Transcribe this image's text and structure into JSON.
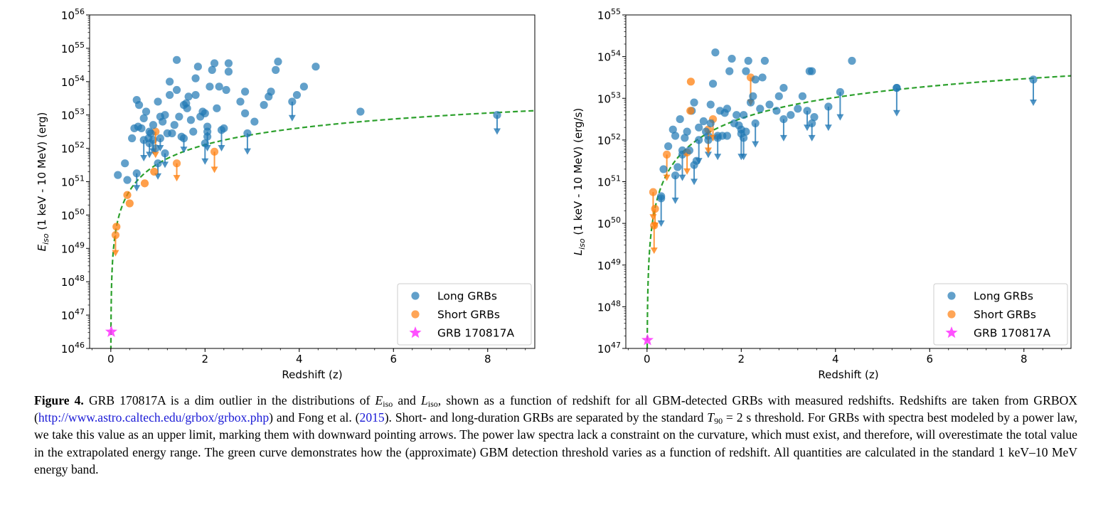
{
  "chart_data": [
    {
      "type": "scatter",
      "title": "",
      "xlabel": "Redshift (z)",
      "ylabel_main": "E",
      "ylabel_sub": "iso",
      "ylabel_rest": " (1 keV - 10 MeV) (erg)",
      "xlim": [
        -0.45,
        9.0
      ],
      "ylim_log10": [
        46,
        56
      ],
      "log_y": true,
      "x_ticks": [
        0,
        2,
        4,
        6,
        8
      ],
      "y_tick_exponents": [
        46,
        47,
        48,
        49,
        50,
        51,
        52,
        53,
        54,
        55,
        56
      ],
      "tick_base": "10",
      "grid": false,
      "legend_position": "lower right",
      "legend": [
        "Long GRBs",
        "Short GRBs",
        "GRB 170817A"
      ],
      "colors": {
        "long": "#1f77b4",
        "short": "#ff7f0e",
        "grb": "#ff33ff",
        "threshold": "#2ca02c"
      },
      "long_detections": [
        [
          0.15,
          51.2
        ],
        [
          0.35,
          51.05
        ],
        [
          0.3,
          51.55
        ],
        [
          0.45,
          52.3
        ],
        [
          0.5,
          52.6
        ],
        [
          0.55,
          53.45
        ],
        [
          0.6,
          53.3
        ],
        [
          0.65,
          52.6
        ],
        [
          0.7,
          52.9
        ],
        [
          0.75,
          53.1
        ],
        [
          0.8,
          52.3
        ],
        [
          0.85,
          52.45
        ],
        [
          0.9,
          52.7
        ],
        [
          0.95,
          52.0
        ],
        [
          1.0,
          53.4
        ],
        [
          1.1,
          52.8
        ],
        [
          1.15,
          53.0
        ],
        [
          1.2,
          52.45
        ],
        [
          1.25,
          54.0
        ],
        [
          1.3,
          52.45
        ],
        [
          1.35,
          52.7
        ],
        [
          1.4,
          53.75
        ],
        [
          1.45,
          52.95
        ],
        [
          1.5,
          52.35
        ],
        [
          1.55,
          53.3
        ],
        [
          1.6,
          53.35
        ],
        [
          1.65,
          53.55
        ],
        [
          1.7,
          52.85
        ],
        [
          1.75,
          52.5
        ],
        [
          1.8,
          53.6
        ],
        [
          1.8,
          54.1
        ],
        [
          1.85,
          54.45
        ],
        [
          1.9,
          52.95
        ],
        [
          1.95,
          53.1
        ],
        [
          2.0,
          53.05
        ],
        [
          2.05,
          52.65
        ],
        [
          2.1,
          53.85
        ],
        [
          2.15,
          54.35
        ],
        [
          2.2,
          54.55
        ],
        [
          2.25,
          53.2
        ],
        [
          2.3,
          53.85
        ],
        [
          2.4,
          52.6
        ],
        [
          2.45,
          53.75
        ],
        [
          2.5,
          54.3
        ],
        [
          2.5,
          54.55
        ],
        [
          2.75,
          53.4
        ],
        [
          2.85,
          53.05
        ],
        [
          2.85,
          53.7
        ],
        [
          3.05,
          52.8
        ],
        [
          3.25,
          53.3
        ],
        [
          3.35,
          53.55
        ],
        [
          3.4,
          53.7
        ],
        [
          3.5,
          54.35
        ],
        [
          3.55,
          54.6
        ],
        [
          3.95,
          53.6
        ],
        [
          4.1,
          53.85
        ],
        [
          4.35,
          54.45
        ],
        [
          5.3,
          53.1
        ],
        [
          1.4,
          54.65
        ],
        [
          1.05,
          52.95
        ],
        [
          0.58,
          52.65
        ],
        [
          0.82,
          52.5
        ],
        [
          1.62,
          53.2
        ],
        [
          2.05,
          52.35
        ],
        [
          1.25,
          53.6
        ]
      ],
      "long_upper_limits": [
        [
          0.55,
          51.25,
          50.75
        ],
        [
          0.7,
          52.25,
          51.65
        ],
        [
          0.82,
          52.15,
          51.75
        ],
        [
          0.9,
          52.25,
          51.85
        ],
        [
          1.05,
          52.3,
          51.95
        ],
        [
          1.15,
          51.85,
          51.45
        ],
        [
          1.55,
          52.3,
          51.9
        ],
        [
          2.0,
          52.15,
          51.55
        ],
        [
          2.05,
          52.5,
          51.95
        ],
        [
          2.35,
          52.55,
          51.95
        ],
        [
          2.9,
          52.45,
          51.85
        ],
        [
          3.85,
          53.4,
          52.85
        ],
        [
          8.2,
          53.0,
          52.45
        ],
        [
          1.0,
          51.55,
          51.1
        ]
      ],
      "short_detections": [
        [
          0.12,
          49.65
        ],
        [
          0.35,
          50.6
        ],
        [
          0.4,
          50.35
        ],
        [
          0.72,
          50.95
        ],
        [
          0.92,
          51.3
        ]
      ],
      "short_upper_limits": [
        [
          0.1,
          49.4,
          48.8
        ],
        [
          1.4,
          51.55,
          51.05
        ],
        [
          0.95,
          52.5,
          51.75
        ],
        [
          2.2,
          51.9,
          51.3
        ]
      ],
      "grb_170817A": [
        0.0098,
        46.5
      ],
      "threshold_curve": {
        "z_start": 0.001,
        "z_end": 9.0,
        "value_at_z1_log10": 51.54,
        "form": "log-distance squared times redshift factor"
      }
    },
    {
      "type": "scatter",
      "title": "",
      "xlabel": "Redshift (z)",
      "ylabel_main": "L",
      "ylabel_sub": "iso",
      "ylabel_rest": " (1 keV - 10 MeV) (erg/s)",
      "xlim": [
        -0.45,
        9.0
      ],
      "ylim_log10": [
        47,
        55
      ],
      "log_y": true,
      "x_ticks": [
        0,
        2,
        4,
        6,
        8
      ],
      "y_tick_exponents": [
        47,
        48,
        49,
        50,
        51,
        52,
        53,
        54,
        55
      ],
      "tick_base": "10",
      "grid": false,
      "legend_position": "lower right",
      "legend": [
        "Long GRBs",
        "Short GRBs",
        "GRB 170817A"
      ],
      "colors": {
        "long": "#1f77b4",
        "short": "#ff7f0e",
        "grb": "#ff33ff",
        "threshold": "#2ca02c"
      },
      "long_detections": [
        [
          0.3,
          50.6
        ],
        [
          0.35,
          51.3
        ],
        [
          0.45,
          51.85
        ],
        [
          0.55,
          52.25
        ],
        [
          0.6,
          52.1
        ],
        [
          0.65,
          51.35
        ],
        [
          0.7,
          52.5
        ],
        [
          0.75,
          51.75
        ],
        [
          0.8,
          52.05
        ],
        [
          0.85,
          52.2
        ],
        [
          0.9,
          51.75
        ],
        [
          0.95,
          52.7
        ],
        [
          1.0,
          52.9
        ],
        [
          1.05,
          51.5
        ],
        [
          1.1,
          52.3
        ],
        [
          1.2,
          52.45
        ],
        [
          1.25,
          52.2
        ],
        [
          1.3,
          52.0
        ],
        [
          1.35,
          52.85
        ],
        [
          1.4,
          53.35
        ],
        [
          1.45,
          54.1
        ],
        [
          1.5,
          52.05
        ],
        [
          1.55,
          52.7
        ],
        [
          1.6,
          52.1
        ],
        [
          1.65,
          52.65
        ],
        [
          1.7,
          52.75
        ],
        [
          1.75,
          53.65
        ],
        [
          1.8,
          53.95
        ],
        [
          1.85,
          52.4
        ],
        [
          1.9,
          52.6
        ],
        [
          2.0,
          52.15
        ],
        [
          2.05,
          52.6
        ],
        [
          2.1,
          53.65
        ],
        [
          2.15,
          53.9
        ],
        [
          2.2,
          52.9
        ],
        [
          2.25,
          53.05
        ],
        [
          2.3,
          53.45
        ],
        [
          2.4,
          52.75
        ],
        [
          2.45,
          53.5
        ],
        [
          2.5,
          53.9
        ],
        [
          2.6,
          52.85
        ],
        [
          2.75,
          52.7
        ],
        [
          2.8,
          53.05
        ],
        [
          2.9,
          53.25
        ],
        [
          3.05,
          52.6
        ],
        [
          3.2,
          52.75
        ],
        [
          3.3,
          53.05
        ],
        [
          3.45,
          53.65
        ],
        [
          3.5,
          53.65
        ],
        [
          3.55,
          52.55
        ],
        [
          4.35,
          53.9
        ],
        [
          5.3,
          53.25
        ],
        [
          1.95,
          52.35
        ],
        [
          1.35,
          52.4
        ],
        [
          2.1,
          52.2
        ],
        [
          1.7,
          52.1
        ]
      ],
      "long_upper_limits": [
        [
          0.3,
          50.65,
          49.95
        ],
        [
          0.6,
          51.15,
          50.5
        ],
        [
          0.75,
          51.65,
          51.05
        ],
        [
          1.0,
          51.4,
          50.95
        ],
        [
          1.1,
          52.0,
          51.45
        ],
        [
          1.3,
          52.1,
          51.6
        ],
        [
          1.5,
          52.1,
          51.55
        ],
        [
          2.0,
          52.25,
          51.55
        ],
        [
          2.05,
          52.05,
          51.55
        ],
        [
          2.3,
          52.4,
          51.85
        ],
        [
          2.9,
          52.5,
          52.0
        ],
        [
          3.4,
          52.7,
          52.25
        ],
        [
          3.5,
          52.4,
          52.0
        ],
        [
          3.85,
          52.8,
          52.25
        ],
        [
          4.1,
          53.15,
          52.5
        ],
        [
          5.3,
          53.25,
          52.6
        ],
        [
          8.2,
          53.45,
          52.85
        ]
      ],
      "short_detections": [
        [
          0.93,
          53.4
        ],
        [
          0.92,
          52.7
        ]
      ],
      "short_upper_limits": [
        [
          0.13,
          50.75,
          50.1
        ],
        [
          0.17,
          50.35,
          49.9
        ],
        [
          0.15,
          49.95,
          49.3
        ],
        [
          0.42,
          51.65,
          51.05
        ],
        [
          0.85,
          51.7,
          51.2
        ],
        [
          1.4,
          52.5,
          52.0
        ],
        [
          2.2,
          53.5,
          52.85
        ],
        [
          1.3,
          52.25,
          51.7
        ]
      ],
      "grb_170817A": [
        0.0098,
        47.2
      ],
      "threshold_curve": {
        "z_start": 0.001,
        "z_end": 9.0,
        "value_at_z1_log10": 51.95,
        "form": "log-distance squared times redshift factor"
      }
    }
  ],
  "caption": {
    "label": "Figure 4.",
    "part1": " GRB 170817A is a dim outlier in the distributions of ",
    "e_main": "E",
    "e_sub": "iso",
    "part2": " and ",
    "l_main": "L",
    "l_sub": "iso",
    "part3": ", shown as a function of redshift for all GBM-detected GRBs with measured redshifts. Redshifts are taken from GRBOX (",
    "link": "http://www.astro.caltech.edu/grbox/grbox.php",
    "part4": ") and Fong et al. (",
    "cite_year": "2015",
    "part5": "). Short- and long-duration GRBs are separated by the standard ",
    "t_main": "T",
    "t_sub": "90",
    "t_value": " = 2 s",
    "part6": " threshold. For GRBs with spectra best modeled by a power law, we take this value as an upper limit, marking them with downward pointing arrows. The power law spectra lack a constraint on the curvature, which must exist, and therefore, will overestimate the total value in the extrapolated energy range. The green curve demonstrates how the (approximate) GBM detection threshold varies as a function of redshift. All quantities are calculated in the standard 1 keV–10 MeV energy band."
  }
}
